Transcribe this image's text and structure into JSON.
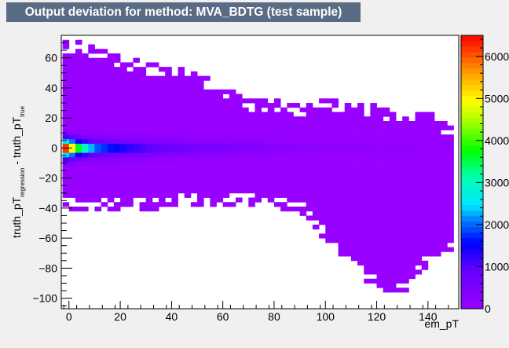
{
  "chart_data": {
    "type": "heatmap",
    "title": "Output deviation for method: MVA_BDTG (test sample)",
    "xlabel": "em_pT",
    "ylabel_main": "truth_pT",
    "ylabel_sub1": "regression",
    "ylabel_mid": " - truth_pT",
    "ylabel_sub2": "true",
    "xlim": [
      -3,
      152
    ],
    "ylim": [
      -107,
      75
    ],
    "x_ticks": [
      0,
      20,
      40,
      60,
      80,
      100,
      120,
      140
    ],
    "y_ticks": [
      -100,
      -80,
      -60,
      -40,
      -20,
      0,
      20,
      40,
      60
    ],
    "zlim": [
      0,
      6500
    ],
    "z_ticks": [
      0,
      1000,
      2000,
      3000,
      4000,
      5000,
      6000
    ],
    "envelope_x": [
      0,
      10,
      20,
      30,
      40,
      50,
      60,
      70,
      80,
      90,
      100,
      110,
      120,
      130,
      140,
      150
    ],
    "envelope_upper": [
      72,
      68,
      62,
      57,
      55,
      50,
      42,
      33,
      33,
      28,
      33,
      30,
      29,
      22,
      25,
      12
    ],
    "envelope_lower": [
      -42,
      -42,
      -42,
      -41,
      -40,
      -38,
      -38,
      -38,
      -40,
      -43,
      -62,
      -78,
      -95,
      -100,
      -78,
      -70
    ],
    "core_profile": [
      {
        "x": 0,
        "z": 6200
      },
      {
        "x": 2,
        "z": 4200
      },
      {
        "x": 5,
        "z": 3200
      },
      {
        "x": 10,
        "z": 2000
      },
      {
        "x": 20,
        "z": 1400
      },
      {
        "x": 30,
        "z": 1000
      },
      {
        "x": 50,
        "z": 600
      },
      {
        "x": 80,
        "z": 300
      },
      {
        "x": 100,
        "z": 150
      },
      {
        "x": 150,
        "z": 60
      }
    ],
    "grid": false
  }
}
